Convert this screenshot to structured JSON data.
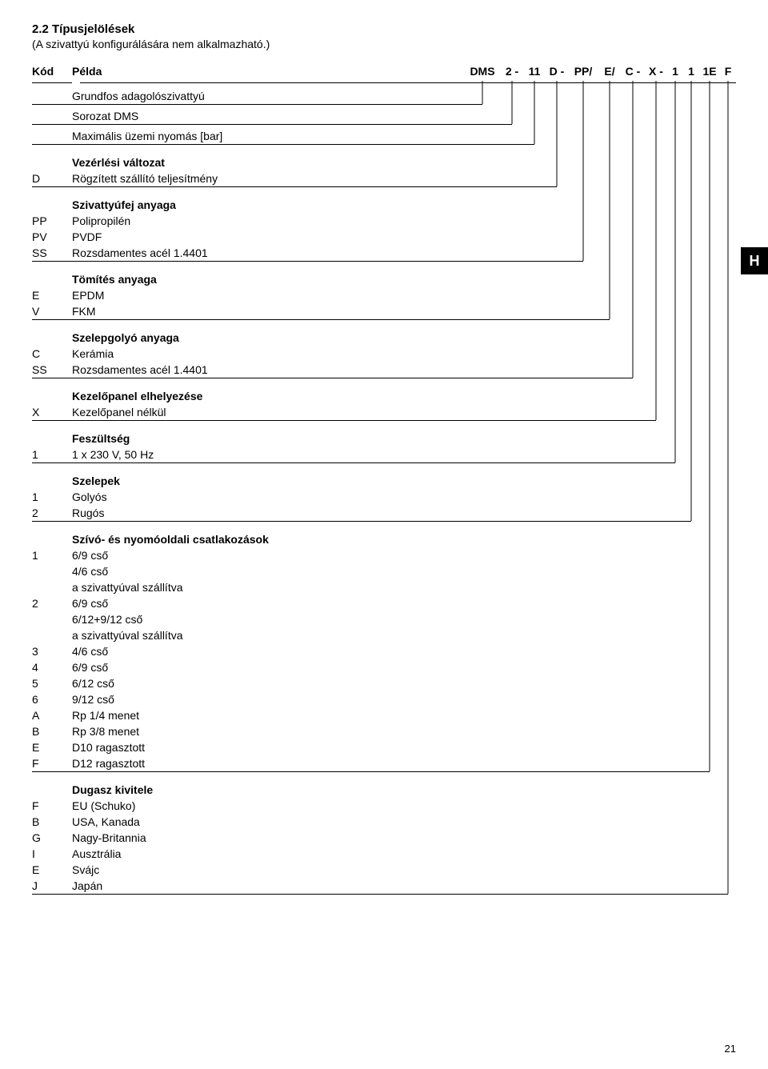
{
  "page_title": "2.2 Típusjelölések",
  "page_subtitle": "(A szivattyú konfigurálására nem alkalmazható.)",
  "hdr_kod": "Kód",
  "hdr_pelda": "Példa",
  "type_code": [
    "DMS",
    "2 -",
    "11",
    "D -",
    "PP/",
    "E/",
    "C -",
    "X -",
    "1",
    "1",
    "1E",
    "F"
  ],
  "type_code_widths": [
    46,
    28,
    28,
    28,
    38,
    28,
    30,
    28,
    20,
    20,
    26,
    20
  ],
  "black_box_label": "H",
  "page_number": "21",
  "layout": {
    "col_code_w": 50,
    "col_text_start": 50,
    "rail_x_start": 560,
    "rail_x_step": 29,
    "rail_count": 12,
    "section_rule_right_pad": 4,
    "font_size_pt": 10.5,
    "rule_color": "#000000"
  },
  "sections": [
    {
      "title": null,
      "lines": [
        {
          "code": "",
          "text": "Grundfos adagolószivattyú"
        }
      ],
      "rail_index_end": 0
    },
    {
      "title": null,
      "lines": [
        {
          "code": "",
          "text": "Sorozat DMS"
        }
      ],
      "rail_index_end": 1
    },
    {
      "title": null,
      "lines": [
        {
          "code": "",
          "text": "Maximális üzemi nyomás [bar]"
        }
      ],
      "rail_index_end": 2
    },
    {
      "title": "Vezérlési változat",
      "lines": [
        {
          "code": "D",
          "text": "Rögzített szállító teljesítmény"
        }
      ],
      "rail_index_end": 3
    },
    {
      "title": "Szivattyúfej anyaga",
      "lines": [
        {
          "code": "PP",
          "text": "Polipropilén"
        },
        {
          "code": "PV",
          "text": "PVDF"
        },
        {
          "code": "SS",
          "text": "Rozsdamentes acél 1.4401"
        }
      ],
      "rail_index_end": 4
    },
    {
      "title": "Tömítés anyaga",
      "lines": [
        {
          "code": "E",
          "text": "EPDM"
        },
        {
          "code": "V",
          "text": "FKM"
        }
      ],
      "rail_index_end": 5
    },
    {
      "title": "Szelepgolyó anyaga",
      "lines": [
        {
          "code": "C",
          "text": "Kerámia"
        },
        {
          "code": "SS",
          "text": "Rozsdamentes acél 1.4401"
        }
      ],
      "rail_index_end": 6
    },
    {
      "title": "Kezelőpanel elhelyezése",
      "lines": [
        {
          "code": "X",
          "text": "Kezelőpanel nélkül"
        }
      ],
      "rail_index_end": 7
    },
    {
      "title": "Feszültség",
      "lines": [
        {
          "code": "1",
          "text": "1 x 230 V, 50 Hz"
        }
      ],
      "rail_index_end": 8
    },
    {
      "title": "Szelepek",
      "lines": [
        {
          "code": "1",
          "text": "Golyós"
        },
        {
          "code": "2",
          "text": "Rugós"
        }
      ],
      "rail_index_end": 9
    },
    {
      "title": "Szívó- és nyomóoldali csatlakozások",
      "lines": [
        {
          "code": "1",
          "text": "6/9 cső"
        },
        {
          "code": "",
          "text": "4/6 cső"
        },
        {
          "code": "",
          "text": "a szivattyúval szállítva"
        },
        {
          "code": "2",
          "text": "6/9 cső"
        },
        {
          "code": "",
          "text": "6/12+9/12 cső"
        },
        {
          "code": "",
          "text": "a szivattyúval szállítva"
        },
        {
          "code": "3",
          "text": "4/6 cső"
        },
        {
          "code": "4",
          "text": "6/9 cső"
        },
        {
          "code": "5",
          "text": "6/12 cső"
        },
        {
          "code": "6",
          "text": "9/12 cső"
        },
        {
          "code": "A",
          "text": "Rp 1/4 menet"
        },
        {
          "code": "B",
          "text": "Rp 3/8 menet"
        },
        {
          "code": "E",
          "text": "D10 ragasztott"
        },
        {
          "code": "F",
          "text": "D12 ragasztott"
        }
      ],
      "rail_index_end": 10
    },
    {
      "title": "Dugasz kivitele",
      "lines": [
        {
          "code": "F",
          "text": "EU (Schuko)"
        },
        {
          "code": "B",
          "text": "USA, Kanada"
        },
        {
          "code": "G",
          "text": "Nagy-Britannia"
        },
        {
          "code": "I",
          "text": "Ausztrália"
        },
        {
          "code": "E",
          "text": "Svájc"
        },
        {
          "code": "J",
          "text": "Japán"
        }
      ],
      "rail_index_end": 11
    }
  ]
}
